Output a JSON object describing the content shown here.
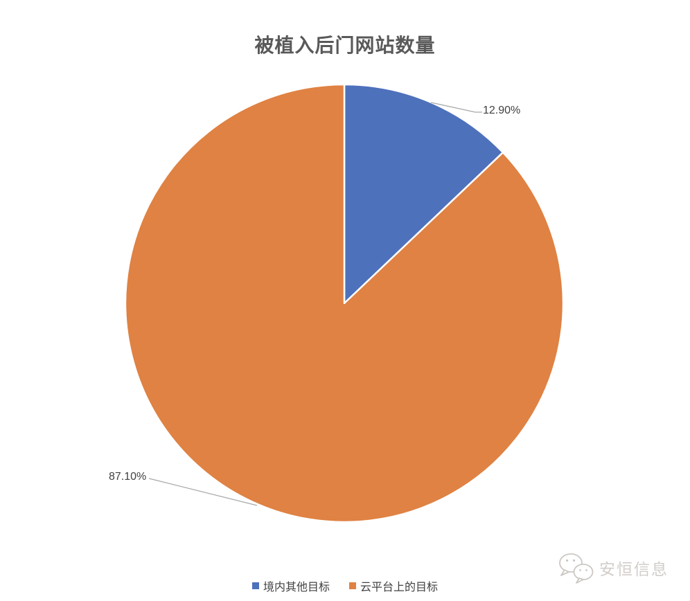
{
  "chart_data": {
    "type": "pie",
    "title": "被植入后门网站数量",
    "start_angle_deg": 0,
    "direction": "clockwise",
    "legend_position": "bottom",
    "slices": [
      {
        "name": "境内其他目标",
        "value": 12.9,
        "label": "12.90%",
        "color": "#4E71BC"
      },
      {
        "name": "云平台上的目标",
        "value": 87.1,
        "label": "87.10%",
        "color": "#DF8243"
      }
    ]
  },
  "watermark": {
    "text": "安恒信息",
    "icon": "wechat-icon",
    "color": "#D2CDC9"
  }
}
